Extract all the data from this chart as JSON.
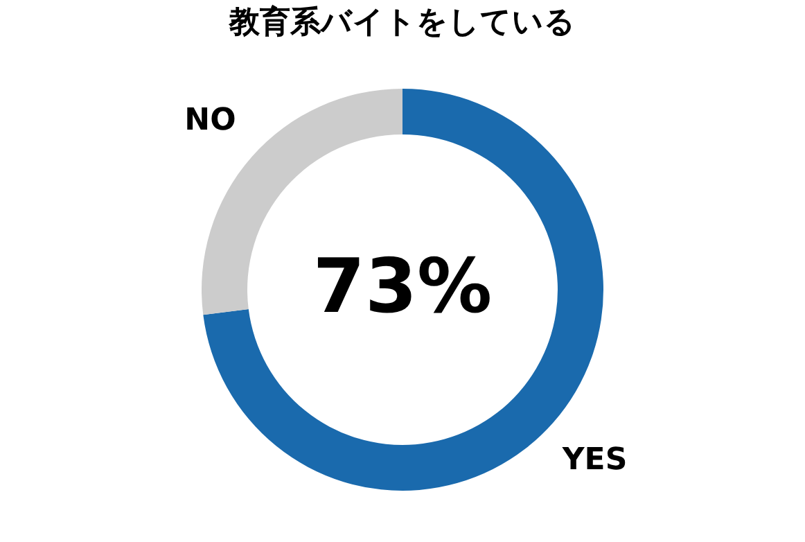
{
  "chart_data": {
    "type": "donut",
    "title": "教育系バイトをしている",
    "categories": [
      "YES",
      "NO"
    ],
    "values": [
      73,
      27
    ],
    "colors": [
      "#1a6aad",
      "#cccccc"
    ],
    "annotations": [
      "73%"
    ],
    "legend": false
  }
}
